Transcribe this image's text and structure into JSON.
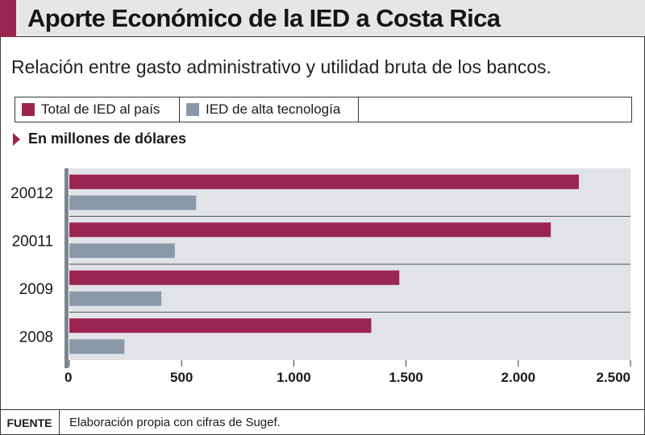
{
  "header": {
    "title": "Aporte Económico de la IED a Costa Rica"
  },
  "subtitle": "Relación entre gasto administrativo y utilidad bruta de los bancos.",
  "unit_label": "En millones de dólares",
  "footer": {
    "source_label": "FUENTE",
    "source_text": "Elaboración propia con cifras de Sugef."
  },
  "colors": {
    "accent": "#9b2550",
    "total": "#9b2550",
    "tech": "#8a98a8",
    "plot_bg": "#e1e3e7"
  },
  "chart_data": {
    "type": "bar",
    "orientation": "horizontal",
    "categories": [
      "20012",
      "20011",
      "2009",
      "2008"
    ],
    "series": [
      {
        "name": "Total de IED al país",
        "values": [
          2270,
          2145,
          1470,
          1345
        ]
      },
      {
        "name": "IED de alta tecnología",
        "values": [
          565,
          470,
          410,
          245
        ]
      }
    ],
    "xlim": [
      0,
      2500
    ],
    "xticks": [
      0,
      500,
      1000,
      1500,
      2000,
      2500
    ],
    "xtick_labels": [
      "0",
      "500",
      "1.000",
      "1.500",
      "2.000",
      "2.500"
    ],
    "legend_position": "top"
  }
}
